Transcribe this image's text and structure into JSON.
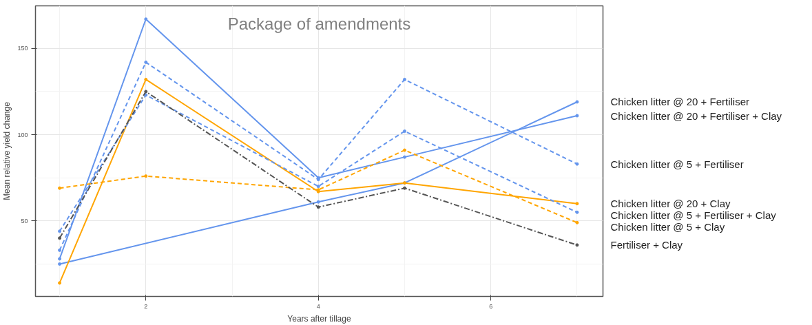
{
  "chart_data": {
    "type": "line",
    "title": "Package of amendments",
    "xlabel": "Years after tillage",
    "ylabel": "Mean relative yield change",
    "xlim": [
      0.72,
      7.3
    ],
    "xticks": [
      2,
      4,
      6
    ],
    "ylim": [
      6.2,
      174.7
    ],
    "yticks": [
      50,
      100,
      150
    ],
    "grid": true,
    "marker": "circle",
    "series": [
      {
        "name": "Chicken litter @ 20 + Fertiliser",
        "color": "#6495ed",
        "line_style": "solid",
        "x": [
          1,
          4,
          5,
          7
        ],
        "values": [
          25,
          61,
          72,
          119
        ]
      },
      {
        "name": "Chicken litter @ 20 + Fertiliser + Clay",
        "color": "#6495ed",
        "line_style": "solid",
        "x": [
          1,
          2,
          4,
          5,
          7
        ],
        "values": [
          28,
          167,
          75,
          87,
          111
        ]
      },
      {
        "name": "Chicken litter @ 5 + Fertiliser",
        "color": "#6495ed",
        "line_style": "dashed",
        "x": [
          1,
          2,
          4,
          5,
          7
        ],
        "values": [
          33,
          142,
          74,
          132,
          83
        ]
      },
      {
        "name": "Chicken litter @ 20 + Clay",
        "color": "#ffa500",
        "line_style": "solid",
        "x": [
          1,
          2,
          4,
          5,
          7
        ],
        "values": [
          14,
          132,
          67,
          72,
          60
        ]
      },
      {
        "name": "Chicken litter @ 5 + Fertiliser + Clay",
        "color": "#6495ed",
        "line_style": "dashed",
        "x": [
          1,
          2,
          4,
          5,
          7
        ],
        "values": [
          44,
          123,
          70,
          102,
          55
        ]
      },
      {
        "name": "Chicken litter @ 5 + Clay",
        "color": "#ffa500",
        "line_style": "dashed",
        "x": [
          1,
          2,
          4,
          5,
          7
        ],
        "values": [
          69,
          76,
          68,
          91,
          49
        ]
      },
      {
        "name": "Fertiliser + Clay",
        "color": "#555555",
        "line_style": "dashdot",
        "x": [
          1,
          2,
          4,
          5,
          7
        ],
        "values": [
          40,
          125,
          58,
          69,
          36
        ]
      }
    ]
  }
}
